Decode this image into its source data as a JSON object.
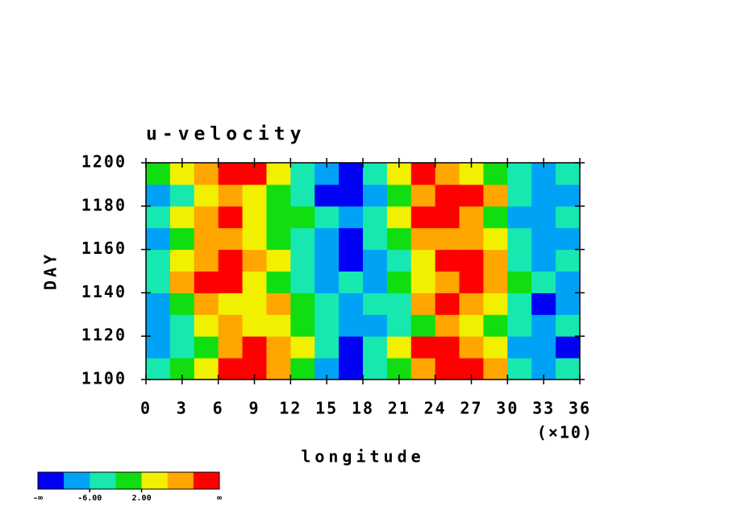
{
  "chart_data": {
    "type": "heatmap",
    "title": "u-velocity",
    "xlabel": "longitude",
    "ylabel": "DAY",
    "x_multiplier": "(×10)",
    "x": [
      1,
      3,
      5,
      7,
      9,
      11,
      13,
      15,
      17,
      19,
      21,
      23,
      25,
      27,
      29,
      31,
      33,
      35
    ],
    "y": [
      1105,
      1115,
      1125,
      1135,
      1145,
      1155,
      1165,
      1175,
      1185,
      1195
    ],
    "z": [
      [
        -4,
        0,
        4,
        10,
        12,
        6,
        0,
        -8,
        -11,
        -6,
        -1,
        7,
        12,
        10,
        6,
        -5,
        -8,
        -5
      ],
      [
        -10,
        -5,
        0,
        7,
        11,
        8,
        3,
        -4,
        -12,
        -6,
        4,
        10,
        12,
        7,
        3,
        -8,
        -10,
        -11
      ],
      [
        -9,
        -5,
        3,
        7,
        5,
        4,
        0,
        -4,
        -8,
        -10,
        -5,
        1,
        8,
        5,
        0,
        -5,
        -8,
        -6
      ],
      [
        -8,
        0,
        7,
        5,
        3,
        6,
        1,
        -4,
        -10,
        -6,
        -3,
        7,
        11,
        8,
        4,
        -4,
        -11,
        -9
      ],
      [
        -4,
        7,
        11,
        10,
        4,
        0,
        -5,
        -9,
        -6,
        -8,
        -1,
        4,
        8,
        11,
        7,
        0,
        -5,
        -8
      ],
      [
        -5,
        4,
        7,
        12,
        8,
        3,
        -3,
        -8,
        -11,
        -8,
        -3,
        5,
        10,
        11,
        7,
        -4,
        -9,
        -6
      ],
      [
        -7,
        0,
        8,
        6,
        3,
        0,
        -4,
        -9,
        -12,
        -6,
        1,
        7,
        9,
        6,
        3,
        -5,
        -9,
        -8
      ],
      [
        -5,
        3,
        7,
        10,
        4,
        1,
        -1,
        -5,
        -9,
        -4,
        4,
        11,
        13,
        8,
        0,
        -8,
        -10,
        -6
      ],
      [
        -8,
        -3,
        4,
        7,
        5,
        0,
        -4,
        -11,
        -13,
        -10,
        -1,
        7,
        12,
        11,
        6,
        -4,
        -8,
        -9
      ],
      [
        0,
        4,
        8,
        12,
        11,
        3,
        -5,
        -8,
        -12,
        -4,
        3,
        10,
        8,
        4,
        0,
        -4,
        -10,
        -6
      ]
    ],
    "xlim": [
      0,
      36
    ],
    "ylim": [
      1100,
      1200
    ],
    "xticks": [
      0,
      3,
      6,
      9,
      12,
      15,
      18,
      21,
      24,
      27,
      30,
      33,
      36
    ],
    "yticks": [
      1100,
      1120,
      1140,
      1160,
      1180,
      1200
    ],
    "colorbar": {
      "levels": [
        -10,
        -6,
        -2,
        2,
        6,
        10
      ],
      "colors": [
        "#0000f5",
        "#00a2f5",
        "#16e8b0",
        "#10de10",
        "#f0f000",
        "#ffa600",
        "#ff0000"
      ],
      "end_labels": [
        "-∞",
        "∞"
      ],
      "ticks": [
        {
          "value": -6,
          "label": "-6.00"
        },
        {
          "value": 2,
          "label": "2.00"
        }
      ]
    }
  }
}
